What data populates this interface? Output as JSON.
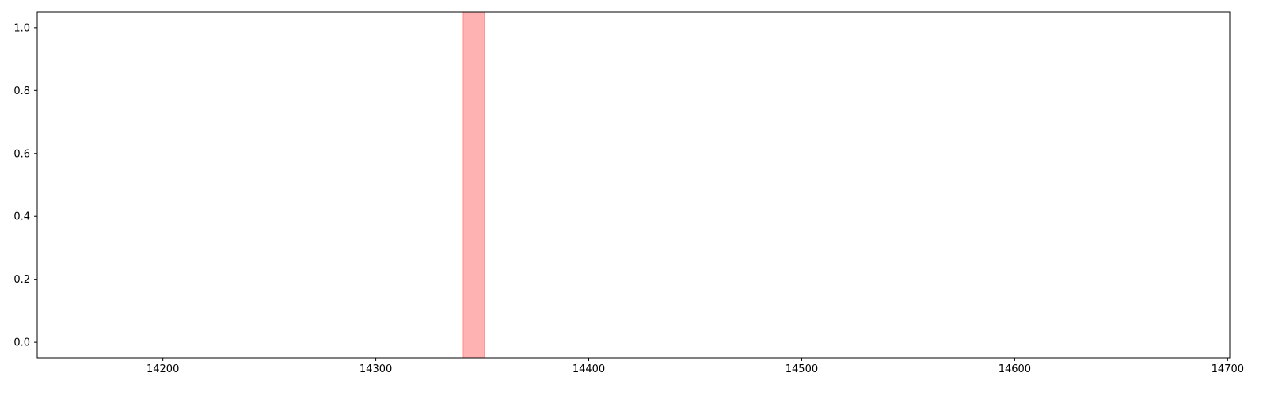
{
  "chart_data": {
    "type": "area",
    "title": "",
    "xlabel": "",
    "ylabel": "",
    "xlim": [
      14141,
      14701
    ],
    "ylim": [
      -0.05,
      1.05
    ],
    "x_ticks": [
      14200,
      14300,
      14400,
      14500,
      14600,
      14700
    ],
    "x_tick_labels": [
      "14200",
      "14300",
      "14400",
      "14500",
      "14600",
      "14700"
    ],
    "y_ticks": [
      0.0,
      0.2,
      0.4,
      0.6,
      0.8,
      1.0
    ],
    "y_tick_labels": [
      "0.0",
      "0.2",
      "0.4",
      "0.6",
      "0.8",
      "1.0"
    ],
    "spans": [
      {
        "x_start": 14341,
        "x_end": 14351,
        "color": "#ff0000",
        "alpha": 0.3
      }
    ],
    "grid": false,
    "legend": "none"
  }
}
